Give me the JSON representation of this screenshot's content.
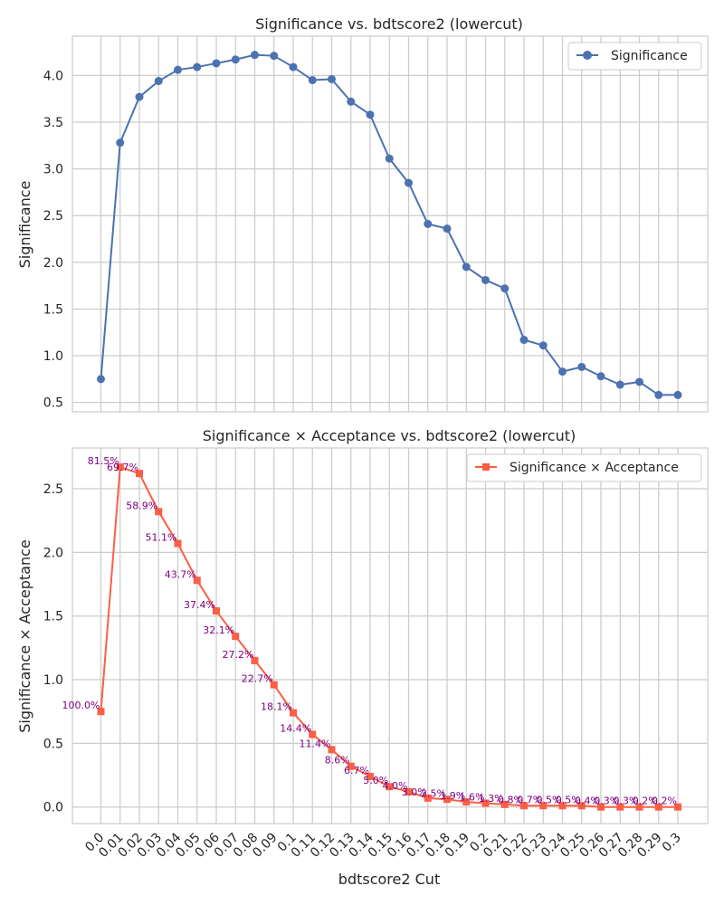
{
  "chart_data": [
    {
      "type": "line",
      "title": "Significance vs. bdtscore2 (lowercut)",
      "xlabel": "",
      "ylabel": "Significance",
      "ylim": [
        0.4,
        4.42
      ],
      "yticks": [
        "0.5",
        "1.0",
        "1.5",
        "2.0",
        "2.5",
        "3.0",
        "3.5",
        "4.0"
      ],
      "grid": true,
      "legend_placement": "top-right",
      "marker": "circle",
      "color": "#4c72b0",
      "series": [
        {
          "name": "Significance",
          "values": [
            0.75,
            3.28,
            3.77,
            3.94,
            4.06,
            4.09,
            4.13,
            4.17,
            4.22,
            4.21,
            4.09,
            3.95,
            3.96,
            3.72,
            3.58,
            3.11,
            2.85,
            2.41,
            2.36,
            1.95,
            1.81,
            1.72,
            1.17,
            1.11,
            0.83,
            0.88,
            0.78,
            0.69,
            0.72,
            0.58,
            0.58
          ]
        }
      ]
    },
    {
      "type": "line",
      "title": "Significance × Acceptance vs. bdtscore2 (lowercut)",
      "xlabel": "bdtscore2 Cut",
      "ylabel": "Significance × Acceptance",
      "ylim": [
        -0.13,
        2.82
      ],
      "yticks": [
        "0.0",
        "0.5",
        "1.0",
        "1.5",
        "2.0",
        "2.5"
      ],
      "grid": true,
      "legend_placement": "top-right",
      "marker": "square",
      "color": "#fa5f45",
      "annotation_color": "#800080",
      "series": [
        {
          "name": "Significance × Acceptance",
          "values": [
            0.75,
            2.67,
            2.62,
            2.32,
            2.07,
            1.78,
            1.54,
            1.34,
            1.15,
            0.96,
            0.74,
            0.57,
            0.45,
            0.32,
            0.24,
            0.16,
            0.12,
            0.07,
            0.06,
            0.04,
            0.03,
            0.02,
            0.01,
            0.01,
            0.01,
            0.01,
            0.0,
            0.0,
            0.0,
            0.0,
            0.0
          ],
          "annotations": [
            "100.0%",
            "81.5%",
            "69.7%",
            "58.9%",
            "51.1%",
            "43.7%",
            "37.4%",
            "32.1%",
            "27.2%",
            "22.7%",
            "18.1%",
            "14.4%",
            "11.4%",
            "8.6%",
            "6.7%",
            "5.0%",
            "4.0%",
            "3.0%",
            "2.5%",
            "1.9%",
            "1.6%",
            "1.3%",
            "0.8%",
            "0.7%",
            "0.5%",
            "0.5%",
            "0.4%",
            "0.3%",
            "0.3%",
            "0.2%",
            "0.2%"
          ]
        }
      ]
    }
  ],
  "x_categories": [
    "0.0",
    "0.01",
    "0.02",
    "0.03",
    "0.04",
    "0.05",
    "0.06",
    "0.07",
    "0.08",
    "0.09",
    "0.1",
    "0.11",
    "0.12",
    "0.13",
    "0.14",
    "0.15",
    "0.16",
    "0.17",
    "0.18",
    "0.19",
    "0.2",
    "0.21",
    "0.22",
    "0.23",
    "0.24",
    "0.25",
    "0.26",
    "0.27",
    "0.28",
    "0.29",
    "0.3"
  ]
}
